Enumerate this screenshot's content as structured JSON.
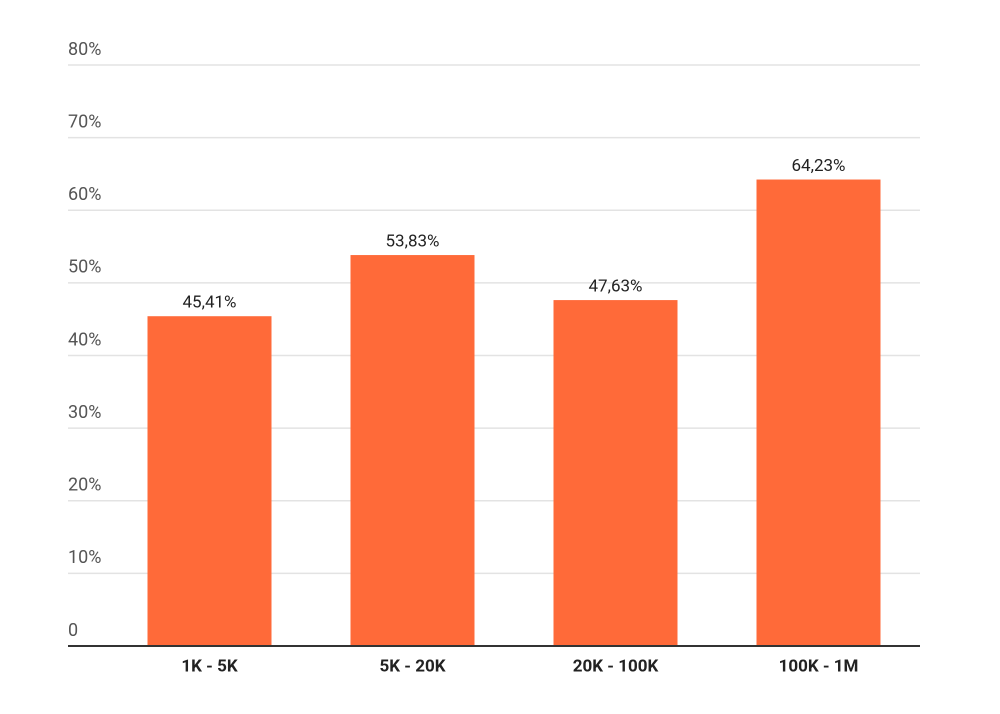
{
  "chart_data": {
    "type": "bar",
    "categories": [
      "1K - 5K",
      "5K - 20K",
      "20K - 100K",
      "100K - 1M"
    ],
    "values": [
      45.41,
      53.83,
      47.63,
      64.23
    ],
    "value_labels": [
      "45,41%",
      "53,83%",
      "47,63%",
      "64,23%"
    ],
    "color": "#ff6a39",
    "ylim": [
      0,
      80
    ],
    "yticks": [
      0,
      {
        "value": 10,
        "label": "10%"
      },
      {
        "value": 20,
        "label": "20%"
      },
      {
        "value": 30,
        "label": "30%"
      },
      {
        "value": 40,
        "label": "40%"
      },
      {
        "value": 50,
        "label": "50%"
      },
      {
        "value": 60,
        "label": "60%"
      },
      {
        "value": 70,
        "label": "70%"
      },
      {
        "value": 80,
        "label": "80%"
      }
    ],
    "grid": true
  }
}
